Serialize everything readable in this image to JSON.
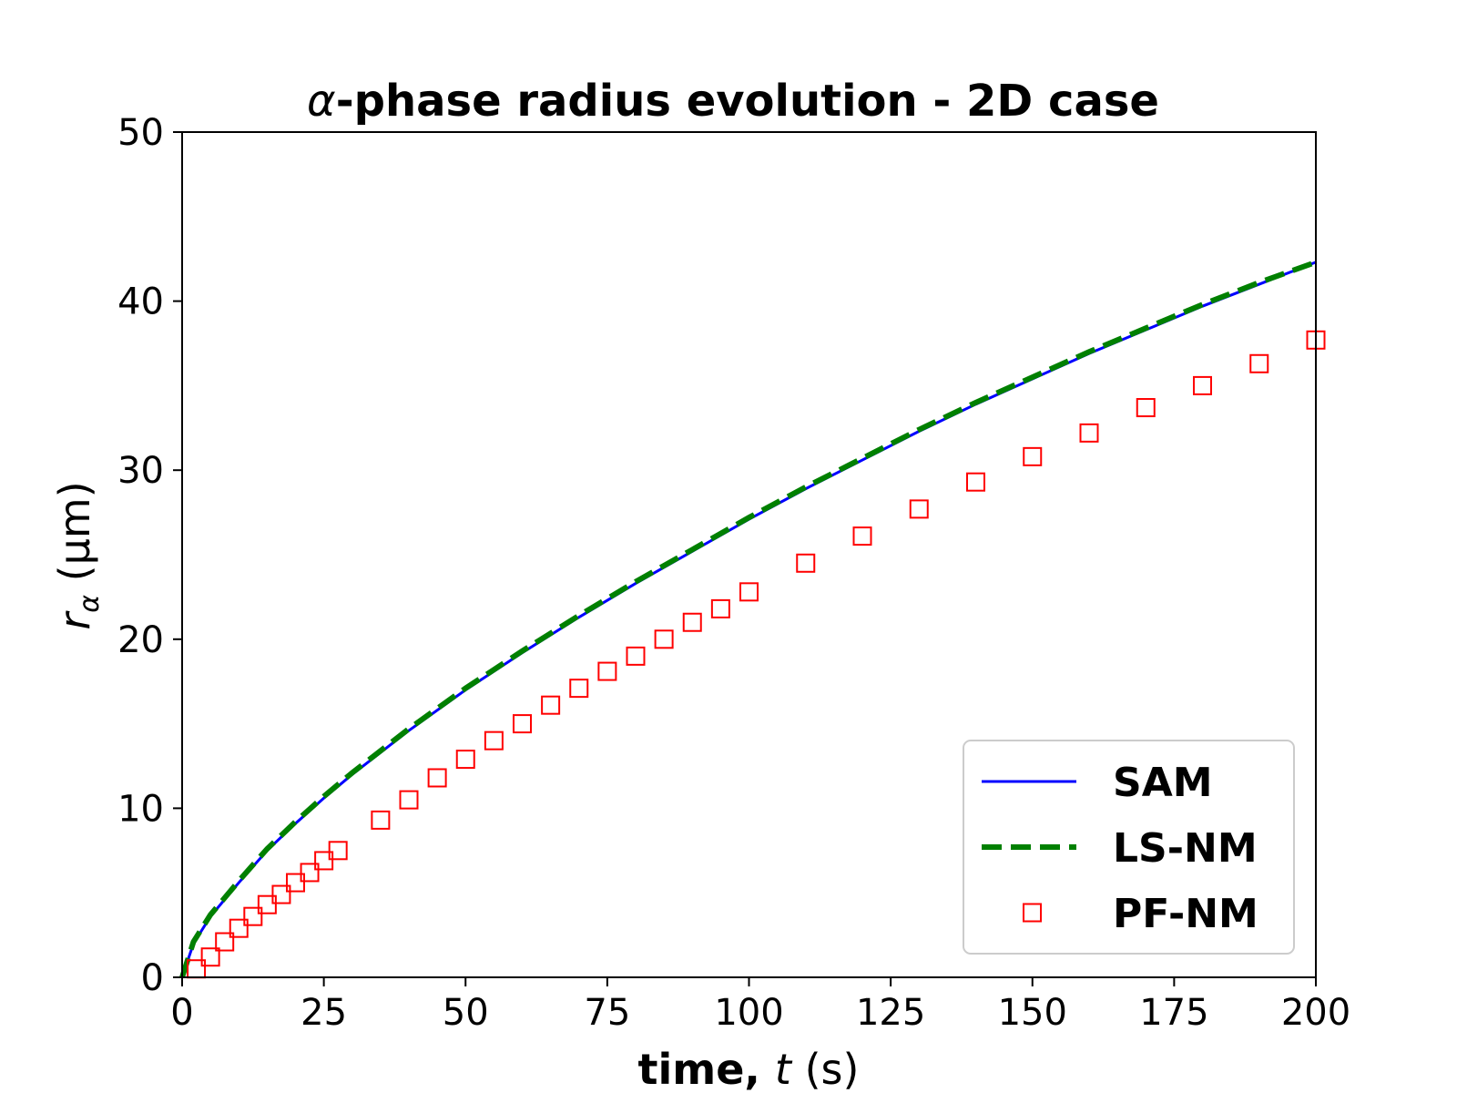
{
  "chart_data": {
    "type": "line",
    "title": {
      "symbol": "α",
      "text": "-phase radius evolution - 2D case"
    },
    "xlabel": {
      "bold": "time, ",
      "italic": "t",
      "rest": " (s)"
    },
    "ylabel": {
      "symbol": "r",
      "subscript": "α",
      "rest": " (μm)"
    },
    "xlim": [
      0,
      200
    ],
    "ylim": [
      0,
      50
    ],
    "xticks": [
      0,
      25,
      50,
      75,
      100,
      125,
      150,
      175,
      200
    ],
    "yticks": [
      0,
      10,
      20,
      30,
      40,
      50
    ],
    "grid": false,
    "legend_position": "bottom-right",
    "series": [
      {
        "name": "SAM",
        "style": "solid-line",
        "color": "#0000ff",
        "x": [
          0,
          2,
          5,
          10,
          15,
          20,
          25,
          30,
          40,
          50,
          60,
          70,
          80,
          90,
          100,
          110,
          120,
          130,
          140,
          150,
          160,
          170,
          180,
          190,
          200
        ],
        "y": [
          0,
          2.0,
          3.6,
          5.6,
          7.5,
          9.1,
          10.6,
          12.0,
          14.6,
          17.0,
          19.2,
          21.3,
          23.3,
          25.2,
          27.1,
          28.9,
          30.6,
          32.3,
          33.9,
          35.4,
          36.9,
          38.3,
          39.7,
          41.0,
          42.3
        ]
      },
      {
        "name": "LS-NM",
        "style": "dashed-line",
        "color": "#008000",
        "x": [
          0,
          2,
          5,
          10,
          15,
          20,
          25,
          30,
          40,
          50,
          60,
          70,
          80,
          90,
          100,
          110,
          120,
          130,
          140,
          150,
          160,
          170,
          180,
          190,
          200
        ],
        "y": [
          0,
          2.1,
          3.7,
          5.7,
          7.6,
          9.2,
          10.7,
          12.1,
          14.7,
          17.1,
          19.3,
          21.4,
          23.4,
          25.3,
          27.2,
          29.0,
          30.7,
          32.4,
          34.0,
          35.5,
          37.0,
          38.4,
          39.8,
          41.1,
          42.3
        ]
      },
      {
        "name": "PF-NM",
        "style": "open-square-markers",
        "color": "#ff0000",
        "x": [
          2.5,
          5,
          7.5,
          10,
          12.5,
          15,
          17.5,
          20,
          22.5,
          25,
          27.5,
          35,
          40,
          45,
          50,
          55,
          60,
          65,
          70,
          75,
          80,
          85,
          90,
          95,
          100,
          110,
          120,
          130,
          140,
          150,
          160,
          170,
          180,
          190,
          200
        ],
        "y": [
          0.5,
          1.2,
          2.1,
          2.9,
          3.6,
          4.3,
          4.9,
          5.6,
          6.2,
          6.9,
          7.5,
          9.3,
          10.5,
          11.8,
          12.9,
          14.0,
          15.0,
          16.1,
          17.1,
          18.1,
          19.0,
          20.0,
          21.0,
          21.8,
          22.8,
          24.5,
          26.1,
          27.7,
          29.3,
          30.8,
          32.2,
          33.7,
          35.0,
          36.3,
          37.7
        ]
      }
    ]
  }
}
